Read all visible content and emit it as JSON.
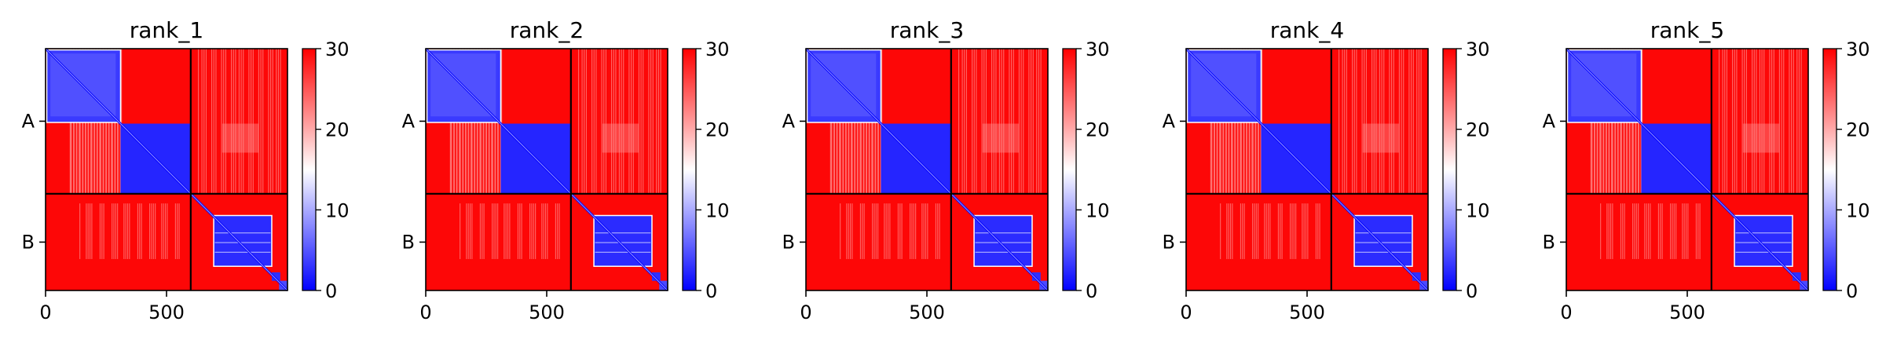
{
  "chart_data": [
    {
      "type": "heatmap",
      "title": "rank_1",
      "x_ticks": [
        0,
        500
      ],
      "xlim": [
        0,
        1000
      ],
      "row_labels": [
        "A",
        "B"
      ],
      "chain_boundary": 600,
      "colorbar": {
        "min": 0,
        "max": 30,
        "ticks": [
          0,
          10,
          20,
          30
        ],
        "colors": [
          "#0000ff",
          "#ffffff",
          "#ff0000"
        ]
      }
    },
    {
      "type": "heatmap",
      "title": "rank_2",
      "x_ticks": [
        0,
        500
      ],
      "xlim": [
        0,
        1000
      ],
      "row_labels": [
        "A",
        "B"
      ],
      "chain_boundary": 600,
      "colorbar": {
        "min": 0,
        "max": 30,
        "ticks": [
          0,
          10,
          20,
          30
        ],
        "colors": [
          "#0000ff",
          "#ffffff",
          "#ff0000"
        ]
      }
    },
    {
      "type": "heatmap",
      "title": "rank_3",
      "x_ticks": [
        0,
        500
      ],
      "xlim": [
        0,
        1000
      ],
      "row_labels": [
        "A",
        "B"
      ],
      "chain_boundary": 600,
      "colorbar": {
        "min": 0,
        "max": 30,
        "ticks": [
          0,
          10,
          20,
          30
        ],
        "colors": [
          "#0000ff",
          "#ffffff",
          "#ff0000"
        ]
      }
    },
    {
      "type": "heatmap",
      "title": "rank_4",
      "x_ticks": [
        0,
        500
      ],
      "xlim": [
        0,
        1000
      ],
      "row_labels": [
        "A",
        "B"
      ],
      "chain_boundary": 600,
      "colorbar": {
        "min": 0,
        "max": 30,
        "ticks": [
          0,
          10,
          20,
          30
        ],
        "colors": [
          "#0000ff",
          "#ffffff",
          "#ff0000"
        ]
      }
    },
    {
      "type": "heatmap",
      "title": "rank_5",
      "x_ticks": [
        0,
        500
      ],
      "xlim": [
        0,
        1000
      ],
      "row_labels": [
        "A",
        "B"
      ],
      "chain_boundary": 600,
      "colorbar": {
        "min": 0,
        "max": 30,
        "ticks": [
          0,
          10,
          20,
          30
        ],
        "colors": [
          "#0000ff",
          "#ffffff",
          "#ff0000"
        ]
      }
    }
  ]
}
